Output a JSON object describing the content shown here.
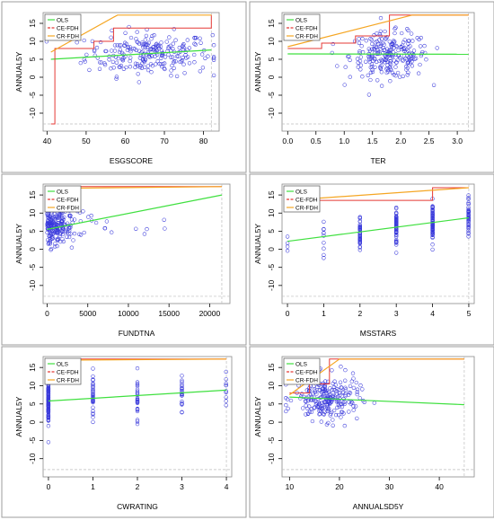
{
  "colors": {
    "ols": "#3fe03f",
    "ce_fdh": "#e53935",
    "cr_fdh": "#f5a623",
    "points": "#3a3adb",
    "frame": "#8a8a8a",
    "axis": "#000000",
    "dashed_guide": "#bdbdbd"
  },
  "legend": {
    "entries": [
      "OLS",
      "CE-FDH",
      "CR-FDH"
    ]
  },
  "chart_data": [
    {
      "type": "scatter",
      "xlabel": "ESGSCORE",
      "ylabel": "ANNUAL5Y",
      "xlim": [
        39,
        84
      ],
      "ylim": [
        -15,
        18
      ],
      "xticks": [
        40,
        50,
        60,
        70,
        80
      ],
      "xticklabels": [
        "40",
        "50",
        "60",
        "70",
        "80"
      ],
      "yticks": [
        -10,
        -5,
        0,
        5,
        10,
        15
      ],
      "yticklabels": [
        "-10",
        "-5",
        "0",
        "5",
        "10",
        "15"
      ],
      "grid": false,
      "legend_position": "top-left",
      "points_center": [
        66,
        6.5
      ],
      "points_spread": [
        8,
        3
      ],
      "points_count": 240,
      "ols_line": {
        "x": [
          41,
          82
        ],
        "y": [
          5.0,
          7.6
        ]
      },
      "ce_fdh_steps": {
        "x": [
          41,
          42,
          52,
          57,
          82
        ],
        "y": [
          -13,
          8.0,
          10.0,
          13.7,
          17.3
        ]
      },
      "cr_fdh_line": {
        "x": [
          41,
          58,
          82
        ],
        "y": [
          7.0,
          17.3,
          17.3
        ]
      }
    },
    {
      "type": "scatter",
      "xlabel": "TER",
      "ylabel": "ANNUAL5Y",
      "xlim": [
        -0.1,
        3.3
      ],
      "ylim": [
        -15,
        18
      ],
      "xticks": [
        0.0,
        0.5,
        1.0,
        1.5,
        2.0,
        2.5,
        3.0
      ],
      "xticklabels": [
        "0.0",
        "0.5",
        "1.0",
        "1.5",
        "2.0",
        "2.5",
        "3.0"
      ],
      "yticks": [
        -10,
        -5,
        0,
        5,
        10,
        15
      ],
      "yticklabels": [
        "-10",
        "-5",
        "0",
        "5",
        "10",
        "15"
      ],
      "grid": false,
      "legend_position": "top-left",
      "points_center": [
        1.8,
        6.0
      ],
      "points_spread": [
        0.35,
        3.2
      ],
      "points_count": 240,
      "ols_line": {
        "x": [
          0.0,
          3.2
        ],
        "y": [
          6.5,
          6.4
        ]
      },
      "ce_fdh_steps": {
        "x": [
          0.0,
          0.6,
          1.2,
          1.8,
          3.2
        ],
        "y": [
          8.0,
          9.5,
          11.5,
          17.3,
          17.3
        ]
      },
      "cr_fdh_line": {
        "x": [
          0.0,
          2.2,
          3.2
        ],
        "y": [
          8.5,
          17.3,
          17.3
        ]
      }
    },
    {
      "type": "scatter",
      "xlabel": "FUNDTNA",
      "ylabel": "ANNUAL5Y",
      "xlim": [
        -500,
        22500
      ],
      "ylim": [
        -15,
        18
      ],
      "xticks": [
        0,
        5000,
        10000,
        15000,
        20000
      ],
      "xticklabels": [
        "0",
        "5000",
        "10000",
        "15000",
        "20000"
      ],
      "yticks": [
        -10,
        -5,
        0,
        5,
        10,
        15
      ],
      "yticklabels": [
        "-10",
        "-5",
        "0",
        "5",
        "10",
        "15"
      ],
      "grid": false,
      "legend_position": "top-left",
      "points_center": [
        1200,
        6.5
      ],
      "points_spread": [
        1500,
        3
      ],
      "points_count": 230,
      "ols_line": {
        "x": [
          0,
          21500
        ],
        "y": [
          5.5,
          15.0
        ]
      },
      "ce_fdh_steps": {
        "x": [
          0,
          2000,
          21500
        ],
        "y": [
          16.5,
          17.3,
          17.3
        ]
      },
      "cr_fdh_line": {
        "x": [
          0,
          21500
        ],
        "y": [
          16.8,
          17.3
        ]
      }
    },
    {
      "type": "scatter",
      "xlabel": "MSSTARS",
      "ylabel": "ANNUAL5Y",
      "xlim": [
        -0.15,
        5.15
      ],
      "ylim": [
        -15,
        18
      ],
      "xticks": [
        0,
        1,
        2,
        3,
        4,
        5
      ],
      "xticklabels": [
        "0",
        "1",
        "2",
        "3",
        "4",
        "5"
      ],
      "yticks": [
        -10,
        -5,
        0,
        5,
        10,
        15
      ],
      "yticklabels": [
        "-10",
        "-5",
        "0",
        "5",
        "10",
        "15"
      ],
      "grid": false,
      "legend_position": "top-left",
      "discrete_x": [
        0,
        1,
        2,
        3,
        4,
        5
      ],
      "points_center": [
        3,
        6.0
      ],
      "points_spread": [
        0,
        2.5
      ],
      "points_count": 230,
      "ols_line": {
        "x": [
          0,
          5
        ],
        "y": [
          2.2,
          8.7
        ]
      },
      "ce_fdh_steps": {
        "x": [
          0,
          4,
          5
        ],
        "y": [
          13.5,
          17.0,
          17.0
        ]
      },
      "cr_fdh_line": {
        "x": [
          0,
          5
        ],
        "y": [
          13.5,
          17.0
        ]
      }
    },
    {
      "type": "scatter",
      "xlabel": "CWRATING",
      "ylabel": "ANNUAL5Y",
      "xlim": [
        -0.12,
        4.12
      ],
      "ylim": [
        -15,
        18
      ],
      "xticks": [
        0,
        1,
        2,
        3,
        4
      ],
      "xticklabels": [
        "0",
        "1",
        "2",
        "3",
        "4"
      ],
      "yticks": [
        -10,
        -5,
        0,
        5,
        10,
        15
      ],
      "yticklabels": [
        "-10",
        "-5",
        "0",
        "5",
        "10",
        "15"
      ],
      "grid": false,
      "legend_position": "top-left",
      "discrete_x": [
        0,
        1,
        2,
        3,
        4
      ],
      "points_center": [
        0.6,
        6.5
      ],
      "points_spread": [
        0,
        3
      ],
      "points_count": 220,
      "ols_line": {
        "x": [
          0,
          4
        ],
        "y": [
          5.8,
          8.8
        ]
      },
      "ce_fdh_steps": {
        "x": [
          0,
          4
        ],
        "y": [
          17.3,
          17.3
        ]
      },
      "cr_fdh_line": {
        "x": [
          0,
          4
        ],
        "y": [
          17.0,
          17.3
        ]
      }
    },
    {
      "type": "scatter",
      "xlabel": "ANNUALSD5Y",
      "ylabel": "ANNUAL5Y",
      "xlim": [
        8.5,
        47
      ],
      "ylim": [
        -15,
        18
      ],
      "xticks": [
        10,
        20,
        30,
        40
      ],
      "xticklabels": [
        "10",
        "20",
        "30",
        "40"
      ],
      "yticks": [
        -10,
        -5,
        0,
        5,
        10,
        15
      ],
      "yticklabels": [
        "-10",
        "-5",
        "0",
        "5",
        "10",
        "15"
      ],
      "grid": false,
      "legend_position": "top-left",
      "points_center": [
        17.5,
        6.5
      ],
      "points_spread": [
        3.2,
        3
      ],
      "points_count": 240,
      "ols_line": {
        "x": [
          10,
          45
        ],
        "y": [
          6.9,
          4.8
        ]
      },
      "ce_fdh_steps": {
        "x": [
          10,
          14,
          18,
          45
        ],
        "y": [
          8.0,
          10.5,
          17.3,
          17.3
        ]
      },
      "cr_fdh_line": {
        "x": [
          10,
          20,
          45
        ],
        "y": [
          7.5,
          17.3,
          17.3
        ]
      }
    }
  ]
}
